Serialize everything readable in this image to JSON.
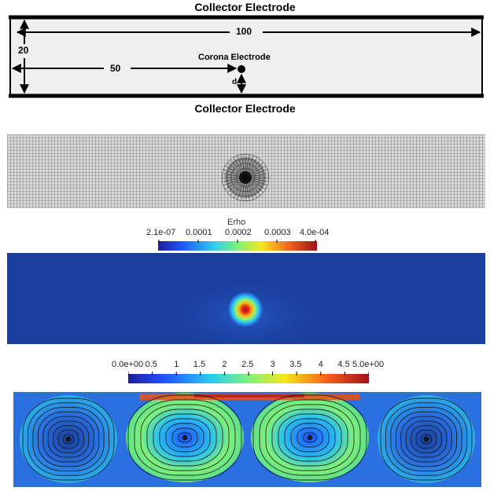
{
  "schematic": {
    "top_label": "Collector Electrode",
    "bottom_label": "Collector Electrode",
    "corona_label": "Corona Electrode",
    "dim_length": "100",
    "dim_height": "20",
    "dim_half": "50",
    "dim_d": "d"
  },
  "erho_colorbar": {
    "title": "Erho",
    "ticks": [
      "2.1e-07",
      "0.0001",
      "0.0002",
      "0.0003",
      "4.0e-04"
    ]
  },
  "velocity_colorbar": {
    "ticks": [
      "0.0e+00",
      "0.5",
      "1",
      "1.5",
      "2",
      "2.5",
      "3",
      "3.5",
      "4",
      "4.5",
      "5.0e+00"
    ]
  },
  "colors": {
    "field_background": "#1a3f9e",
    "mesh_background": "#d8d8d8",
    "hot": "#c01818"
  }
}
